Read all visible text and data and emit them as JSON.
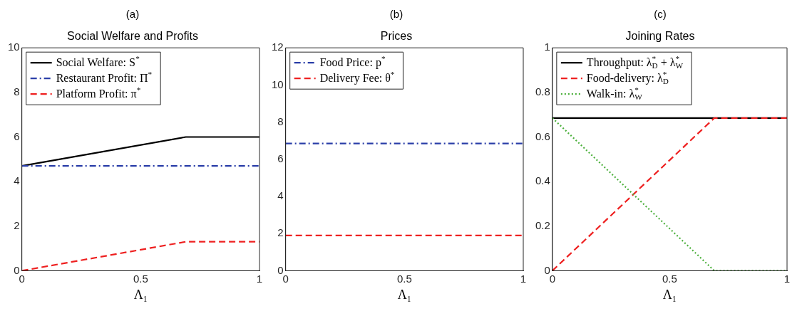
{
  "chart_data": [
    {
      "type": "line",
      "subtitle": "(a)",
      "title": "Social Welfare and Profits",
      "xlabel": "Λ₁",
      "x": [
        0,
        0.69,
        1
      ],
      "xlim": [
        0,
        1
      ],
      "xticks": [
        0,
        0.5,
        1
      ],
      "ylim": [
        0,
        10
      ],
      "yticks": [
        0,
        2,
        4,
        6,
        8,
        10
      ],
      "grid": false,
      "legend": "top left",
      "series": [
        {
          "name": "Social Welfare: S$^{*}$",
          "color": "#000000",
          "line_style": "solid",
          "values": [
            4.7,
            6.0,
            6.0
          ]
        },
        {
          "name": "Restaurant Profit: Π$^{*}$",
          "color": "#2a3ea8",
          "line_style": "dashdot",
          "values": [
            4.7,
            4.7,
            4.7
          ]
        },
        {
          "name": "Platform Profit: π$^{*}$",
          "color": "#ee2020",
          "line_style": "dashed",
          "values": [
            0,
            1.3,
            1.3
          ]
        }
      ]
    },
    {
      "type": "line",
      "subtitle": "(b)",
      "title": "Prices",
      "xlabel": "Λ₁",
      "x": [
        0,
        0.69,
        1
      ],
      "xlim": [
        0,
        1
      ],
      "xticks": [
        0,
        0.5,
        1
      ],
      "ylim": [
        0,
        12
      ],
      "yticks": [
        0,
        2,
        4,
        6,
        8,
        10,
        12
      ],
      "grid": false,
      "legend": "top left",
      "series": [
        {
          "name": "Food Price: p$^{*}$",
          "color": "#2a3ea8",
          "line_style": "dashdot",
          "values": [
            6.85,
            6.85,
            6.85
          ]
        },
        {
          "name": "Delivery Fee: θ$^{*}$",
          "color": "#ee2020",
          "line_style": "dashed",
          "values": [
            1.9,
            1.9,
            1.9
          ]
        }
      ]
    },
    {
      "type": "line",
      "subtitle": "(c)",
      "title": "Joining Rates",
      "xlabel": "Λ₁",
      "x": [
        0,
        0.69,
        1
      ],
      "xlim": [
        0,
        1
      ],
      "xticks": [
        0,
        0.5,
        1
      ],
      "ylim": [
        0,
        1
      ],
      "yticks": [
        0,
        0.2,
        0.4,
        0.6,
        0.8,
        1
      ],
      "grid": false,
      "legend": "top left",
      "series": [
        {
          "name": "Throughput: λ$_{D}$$^{*}$ + λ$_{W}$$^{*}$",
          "color": "#000000",
          "line_style": "solid",
          "values": [
            0.685,
            0.685,
            0.685
          ]
        },
        {
          "name": "Food-delivery: λ$_{D}$$^{*}$",
          "color": "#ee2020",
          "line_style": "dashed",
          "values": [
            0,
            0.685,
            0.685
          ]
        },
        {
          "name": "Walk-in: λ$_{W}$$^{*}$",
          "color": "#4cb03c",
          "line_style": "dotted",
          "values": [
            0.685,
            0,
            0
          ]
        }
      ]
    }
  ]
}
